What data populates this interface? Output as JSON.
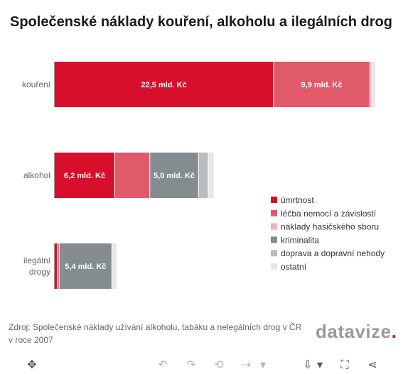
{
  "title": "Společenské náklady kouření, alkoholu a ilegálních drog",
  "source": "Zdroj: Společenské náklady užívání alkoholu, tabáku a nelegálních drog v ČR v roce 2007",
  "logo": {
    "text": "datavize",
    "dot": "."
  },
  "chart_data": {
    "type": "bar",
    "orientation": "horizontal",
    "stacked": true,
    "unit": "mld. Kč",
    "categories": [
      {
        "label": [
          "kouření"
        ]
      },
      {
        "label": [
          "alkohol"
        ]
      },
      {
        "label": [
          "ilegální",
          "drogy"
        ]
      }
    ],
    "series": [
      {
        "name": "úmrtnost",
        "color": "#d70f2a",
        "values": [
          22.5,
          6.2,
          0.3
        ]
      },
      {
        "name": "léčba nemocí a závislostí",
        "color": "#e05a6c",
        "values": [
          9.9,
          3.6,
          0.2
        ]
      },
      {
        "name": "náklady hasičského sboru",
        "color": "#f2b1b9",
        "values": [
          0.2,
          0,
          0
        ]
      },
      {
        "name": "kriminalita",
        "color": "#858c90",
        "values": [
          0,
          5.0,
          5.4
        ]
      },
      {
        "name": "doprava a dopravní nehody",
        "color": "#b9bdbf",
        "values": [
          0,
          1.0,
          0
        ]
      },
      {
        "name": "ostatní",
        "color": "#e6e6e6",
        "values": [
          0.4,
          0.6,
          0.5
        ]
      }
    ],
    "data_labels": [
      {
        "category": 0,
        "series": 0,
        "text": "22,5 mld. Kč"
      },
      {
        "category": 0,
        "series": 1,
        "text": "9,9 mld. Kč"
      },
      {
        "category": 1,
        "series": 0,
        "text": "6,2 mld. Kč"
      },
      {
        "category": 1,
        "series": 3,
        "text": "5,0 mld. Kč"
      },
      {
        "category": 2,
        "series": 3,
        "text": "5,4 mld. Kč"
      }
    ],
    "xlim": [
      0,
      33.2
    ],
    "grid": false,
    "legend_position": "right"
  },
  "toolbar": [
    {
      "icon": "move-icon",
      "glyph": "✥",
      "active": true
    },
    {
      "icon": "undo-icon",
      "glyph": "↶",
      "active": false
    },
    {
      "icon": "redo-icon",
      "glyph": "↷",
      "active": false
    },
    {
      "icon": "reset-icon",
      "glyph": "⟲",
      "active": false
    },
    {
      "icon": "history-icon",
      "glyph": "⇢",
      "active": false
    },
    {
      "icon": "history-dropdown-icon",
      "glyph": "▾",
      "active": false
    },
    {
      "icon": "download-icon",
      "glyph": "⇩",
      "active": true
    },
    {
      "icon": "download-dropdown-icon",
      "glyph": "▾",
      "active": true
    },
    {
      "icon": "fullscreen-icon",
      "glyph": "⛶",
      "active": true
    },
    {
      "icon": "share-icon",
      "glyph": "⋖",
      "active": true
    }
  ]
}
